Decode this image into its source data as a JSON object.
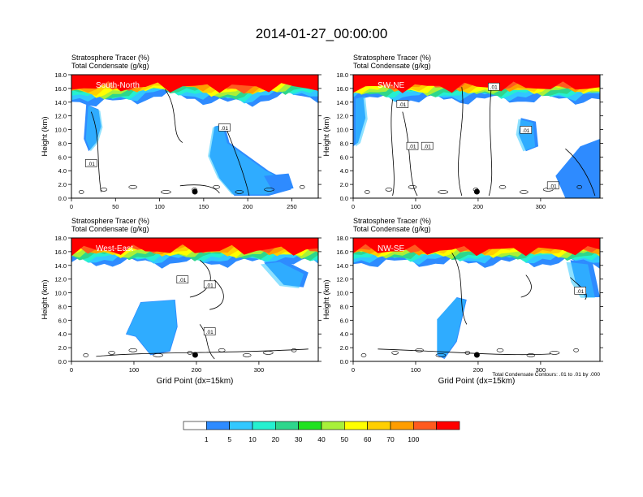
{
  "title": "2014-01-27_00:00:00",
  "colors": {
    "levels": [
      "#ffffff",
      "#2e8bff",
      "#32c8ff",
      "#25f0d0",
      "#2ed68c",
      "#1fe21f",
      "#a8f03a",
      "#ffff00",
      "#ffcf00",
      "#ff9d00",
      "#ff5a1e",
      "#ff0000"
    ],
    "contour": "#000000"
  },
  "colorbar": {
    "labels": [
      "1",
      "5",
      "10",
      "20",
      "30",
      "40",
      "50",
      "60",
      "70",
      "100"
    ]
  },
  "footnote": "Total Condensate Contours: .01 to .01 by .000",
  "chart_data": [
    {
      "type": "heatmap",
      "name_label": "South-North",
      "fill_label": "Stratosphere Tracer   (%)",
      "contour_label": "Total Condensate   (g/kg)",
      "ylabel": "Height (km)",
      "xlabel": "",
      "xlim": [
        0,
        280
      ],
      "ylim": [
        0,
        18
      ],
      "xticks": [
        "0",
        "50",
        "100",
        "150",
        "200",
        "250"
      ],
      "yticks": [
        "0.0",
        "2.0",
        "4.0",
        "6.0",
        "8.0",
        "10.0",
        "12.0",
        "14.0",
        "16.0",
        "18.0"
      ],
      "contour_labels": [
        ".01",
        ".01"
      ],
      "marker_x": 140
    },
    {
      "type": "heatmap",
      "name_label": "SW-NE",
      "fill_label": "Stratosphere Tracer   (%)",
      "contour_label": "Total Condensate   (g/kg)",
      "ylabel": "Height (km)",
      "xlabel": "",
      "xlim": [
        0,
        395
      ],
      "ylim": [
        0,
        18
      ],
      "xticks": [
        "0",
        "100",
        "200",
        "300"
      ],
      "yticks": [
        "0.0",
        "2.0",
        "4.0",
        "6.0",
        "8.0",
        "10.0",
        "12.0",
        "14.0",
        "16.0",
        "18.0"
      ],
      "contour_labels": [
        ".01",
        ".01",
        ".01",
        ".01",
        ".01",
        ".01"
      ],
      "marker_x": 198
    },
    {
      "type": "heatmap",
      "name_label": "West-East",
      "fill_label": "Stratosphere Tracer   (%)",
      "contour_label": "Total Condensate   (g/kg)",
      "ylabel": "Height (km)",
      "xlabel": "Grid Point (dx=15km)",
      "xlim": [
        0,
        395
      ],
      "ylim": [
        0,
        18
      ],
      "xticks": [
        "0",
        "100",
        "200",
        "300"
      ],
      "yticks": [
        "0.0",
        "2.0",
        "4.0",
        "6.0",
        "8.0",
        "10.0",
        "12.0",
        "14.0",
        "16.0",
        "18.0"
      ],
      "contour_labels": [
        ".01",
        ".01",
        ".01"
      ],
      "marker_x": 198
    },
    {
      "type": "heatmap",
      "name_label": "NW-SE",
      "fill_label": "Stratosphere Tracer   (%)",
      "contour_label": "Total Condensate   (g/kg)",
      "ylabel": "Height (km)",
      "xlabel": "Grid Point (dx=15km)",
      "xlim": [
        0,
        395
      ],
      "ylim": [
        0,
        18
      ],
      "xticks": [
        "0",
        "100",
        "200",
        "300"
      ],
      "yticks": [
        "0.0",
        "2.0",
        "4.0",
        "6.0",
        "8.0",
        "10.0",
        "12.0",
        "14.0",
        "16.0",
        "18.0"
      ],
      "contour_labels": [
        ".01"
      ],
      "marker_x": 198
    }
  ]
}
